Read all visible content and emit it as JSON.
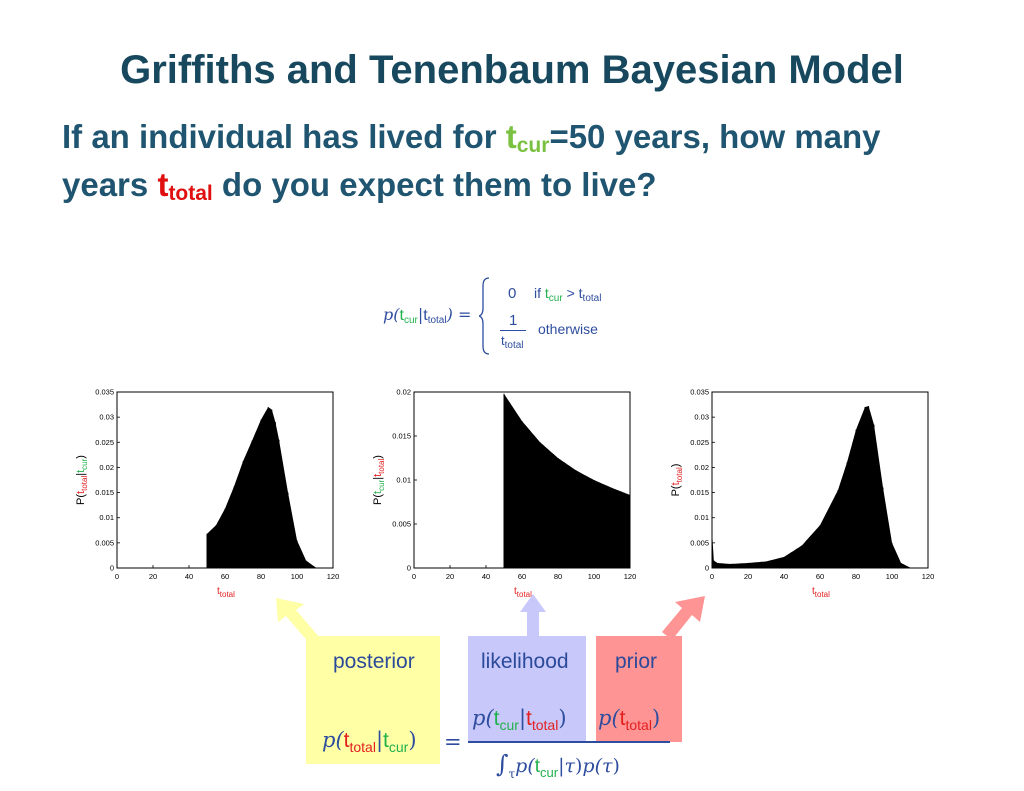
{
  "slide": {
    "title": "Griffiths and Tenenbaum Bayesian Model",
    "question": {
      "line1_pre": "If an individual has lived for ",
      "t": "t",
      "cur": "cur",
      "line1_post": "=50 years, how many",
      "line2_pre": "years ",
      "total": "total",
      "line2_post": " do you expect them to live?"
    }
  },
  "formula": {
    "lhs": "p(",
    "t": "t",
    "cur": "cur",
    "bar": "|",
    "total": "total",
    "close": ")",
    "eq": "=",
    "case1_value": "0",
    "case1_cond": "if",
    "gt": ">",
    "case2_num": "1",
    "case2_cond": "otherwise"
  },
  "labels": {
    "posterior": "posterior",
    "likelihood": "likelihood",
    "prior": "prior"
  },
  "bayes_equation": {
    "p_open": "p(",
    "t": "t",
    "total": "total",
    "cur": "cur",
    "bar": "|",
    "close": ")",
    "equals": "=",
    "tau": "τ",
    "integral": "∫"
  },
  "colors": {
    "title": "#17485e",
    "question": "#1f5570",
    "tcur_green": "#7ac142",
    "ttotal_red": "#e01010",
    "posterior_box": "#ffffa6",
    "likelihood_box": "#c8c8fa",
    "prior_box": "#ff9494"
  },
  "chart_data": [
    {
      "type": "bar",
      "name": "posterior",
      "xlabel": "t_total",
      "ylabel": "P(t_total|t_cur)",
      "xlim": [
        0,
        120
      ],
      "ylim": [
        0,
        0.035
      ],
      "xticks": [
        0,
        20,
        40,
        60,
        80,
        100,
        120
      ],
      "yticks": [
        "0",
        "0.005",
        "0.01",
        "0.015",
        "0.02",
        "0.025",
        "0.03",
        "0.035"
      ],
      "x": [
        50,
        55,
        60,
        65,
        70,
        75,
        80,
        84,
        86,
        88,
        90,
        95,
        100,
        105,
        110
      ],
      "values": [
        0.0068,
        0.0085,
        0.0118,
        0.0162,
        0.0212,
        0.0253,
        0.0295,
        0.032,
        0.0315,
        0.029,
        0.0255,
        0.015,
        0.0055,
        0.0015,
        0.0002
      ]
    },
    {
      "type": "bar",
      "name": "likelihood",
      "xlabel": "t_total",
      "ylabel": "P(t_cur|t_total)",
      "xlim": [
        0,
        120
      ],
      "ylim": [
        0,
        0.02
      ],
      "xticks": [
        0,
        20,
        40,
        60,
        80,
        100,
        120
      ],
      "yticks": [
        "0",
        "0.005",
        "0.01",
        "0.015",
        "0.02"
      ],
      "x": [
        50,
        60,
        70,
        80,
        90,
        100,
        110,
        120
      ],
      "values": [
        0.0198,
        0.0167,
        0.0143,
        0.0125,
        0.0111,
        0.01,
        0.0091,
        0.0083
      ]
    },
    {
      "type": "bar",
      "name": "prior",
      "xlabel": "t_total",
      "ylabel": "P(t_total)",
      "xlim": [
        0,
        120
      ],
      "ylim": [
        0,
        0.035
      ],
      "xticks": [
        0,
        20,
        40,
        60,
        80,
        100,
        120
      ],
      "yticks": [
        "0",
        "0.005",
        "0.01",
        "0.015",
        "0.02",
        "0.025",
        "0.03",
        "0.035"
      ],
      "x": [
        0,
        1,
        3,
        10,
        20,
        30,
        40,
        50,
        60,
        70,
        75,
        80,
        85,
        87,
        90,
        95,
        100,
        105,
        110
      ],
      "values": [
        0.0075,
        0.0015,
        0.001,
        0.0008,
        0.001,
        0.0013,
        0.0022,
        0.0045,
        0.0085,
        0.0155,
        0.021,
        0.0275,
        0.032,
        0.0322,
        0.0285,
        0.016,
        0.005,
        0.001,
        0.0001
      ]
    }
  ]
}
